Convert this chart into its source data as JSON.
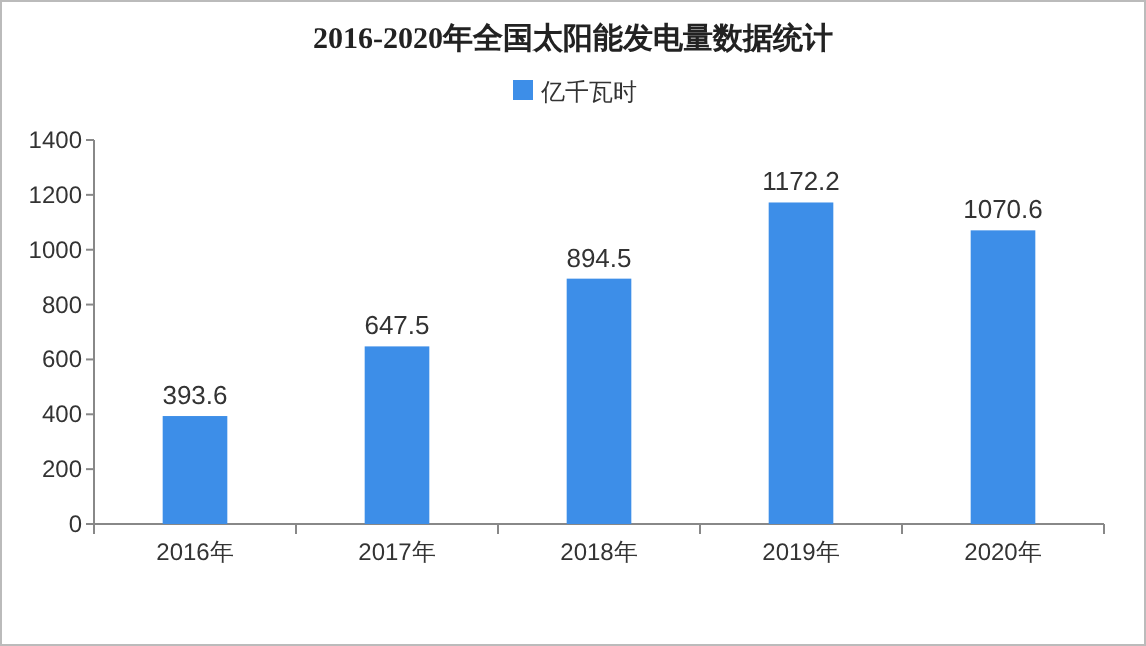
{
  "chart_data": {
    "type": "bar",
    "title": "2016-2020年全国太阳能发电量数据统计",
    "categories": [
      "2016年",
      "2017年",
      "2018年",
      "2019年",
      "2020年"
    ],
    "series": [
      {
        "name": "亿千瓦时",
        "color": "#3d8ee8",
        "values": [
          393.6,
          647.5,
          894.5,
          1172.2,
          1070.6
        ]
      }
    ],
    "ylim": [
      0,
      1400
    ],
    "yticks": [
      0,
      200,
      400,
      600,
      800,
      1000,
      1200,
      1400
    ],
    "data_labels": true,
    "legend": "top",
    "grid": false
  }
}
